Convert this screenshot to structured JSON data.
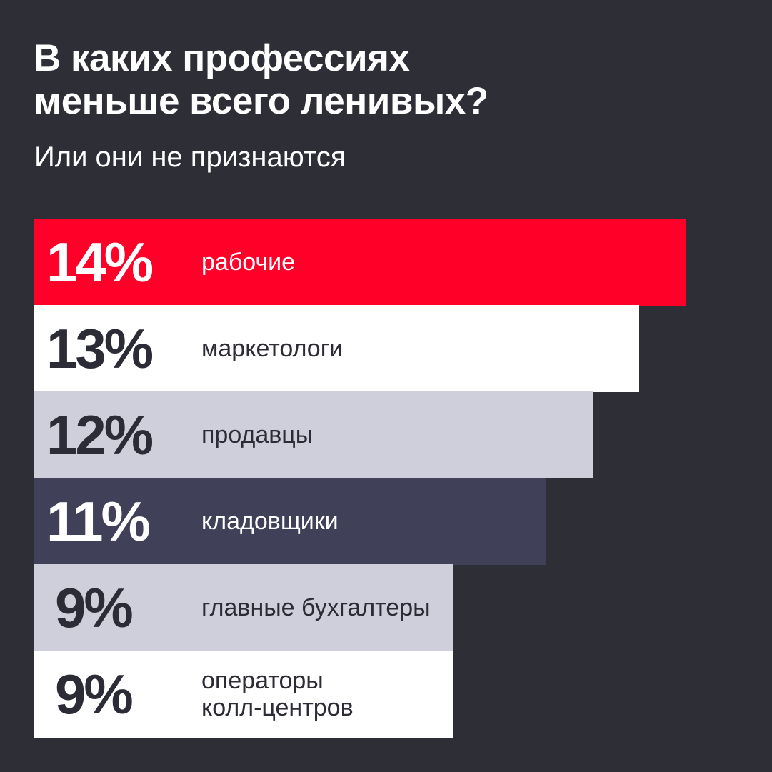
{
  "header": {
    "title_line1": "В каких профессиях",
    "title_line2": "меньше всего ленивых?",
    "subtitle": "Или они не признаются"
  },
  "chart_data": {
    "type": "bar",
    "orientation": "horizontal",
    "title": "В каких профессиях меньше всего ленивых?",
    "subtitle": "Или они не признаются",
    "categories": [
      "рабочие",
      "маркетологи",
      "продавцы",
      "кладовщики",
      "главные бухгалтеры",
      "операторы колл-центров"
    ],
    "values": [
      14,
      13,
      12,
      11,
      9,
      9
    ],
    "value_labels": [
      "14%",
      "13%",
      "12%",
      "11%",
      "9%",
      "9%"
    ],
    "label_lines": [
      [
        "рабочие"
      ],
      [
        "маркетологи"
      ],
      [
        "продавцы"
      ],
      [
        "кладовщики"
      ],
      [
        "главные бухгалтеры"
      ],
      [
        "операторы",
        "колл-центров"
      ]
    ],
    "bar_colors": [
      "#ff0029",
      "#ffffff",
      "#cfcfdb",
      "#404058",
      "#cfcfdb",
      "#ffffff"
    ],
    "text_colors": [
      "#ffffff",
      "#2c2c36",
      "#2c2c36",
      "#ffffff",
      "#2c2c36",
      "#2c2c36"
    ],
    "background": "#2e2e37",
    "grid": false,
    "legend": "none"
  }
}
